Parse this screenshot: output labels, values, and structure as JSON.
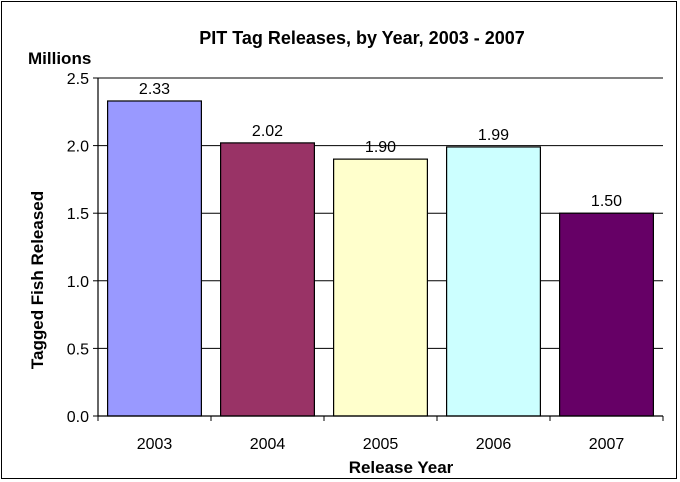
{
  "chart_data": {
    "type": "bar",
    "title": "PIT Tag Releases, by Year, 2003 - 2007",
    "unit_label": "Millions",
    "xlabel": "Release Year",
    "ylabel": "Tagged Fish Released",
    "categories": [
      "2003",
      "2004",
      "2005",
      "2006",
      "2007"
    ],
    "values": [
      2.33,
      2.02,
      1.9,
      1.99,
      1.5
    ],
    "data_labels": [
      "2.33",
      "2.02",
      "1.90",
      "1.99",
      "1.50"
    ],
    "bar_colors": [
      "#9999ff",
      "#993366",
      "#ffffcc",
      "#ccffff",
      "#660066"
    ],
    "ylim": [
      0,
      2.5
    ],
    "yticks": [
      0,
      0.5,
      1.0,
      1.5,
      2.0,
      2.5
    ],
    "ytick_labels": [
      "0.0",
      "0.5",
      "1.0",
      "1.5",
      "2.0",
      "2.5"
    ],
    "grid": true,
    "legend": "none"
  }
}
